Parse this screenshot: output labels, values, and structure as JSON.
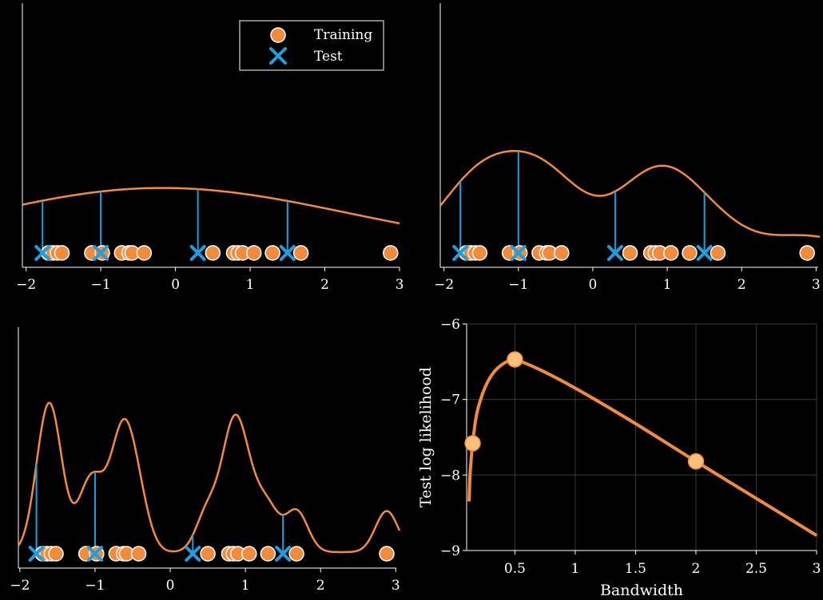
{
  "colors": {
    "background": "#000000",
    "axis": "#ffffff",
    "curve": "#f28c3c",
    "training_fill": "#f28c3c",
    "training_edge": "#ffffff",
    "test": "#1f9fe0",
    "selected_point": "#f8c07a",
    "grid": "#3a3a3a"
  },
  "legend": {
    "training_label": "Training",
    "test_label": "Test",
    "training_marker": "orange-circle-marker",
    "test_marker": "blue-x-marker"
  },
  "chart_data": [
    {
      "type": "line",
      "panel": "top-left",
      "legend_position": "top-right",
      "x_ticks": [
        "−2",
        "−1",
        "0",
        "1",
        "2",
        "3"
      ],
      "xlim": [
        -2,
        3
      ],
      "training_points": [
        -1.7,
        -1.64,
        -1.58,
        -1.52,
        -1.12,
        -0.98,
        -0.72,
        -0.62,
        -0.58,
        -0.42,
        0.5,
        0.78,
        0.84,
        0.9,
        1.05,
        1.3,
        1.68,
        2.88
      ],
      "test_points": [
        -1.78,
        -1.0,
        0.3,
        1.5
      ],
      "bandwidth": 2.0
    },
    {
      "type": "line",
      "panel": "top-right",
      "x_ticks": [
        "−2",
        "−1",
        "0",
        "1",
        "2",
        "3"
      ],
      "xlim": [
        -2,
        3
      ],
      "training_points": [
        -1.7,
        -1.64,
        -1.58,
        -1.52,
        -1.12,
        -0.98,
        -0.72,
        -0.62,
        -0.58,
        -0.42,
        0.5,
        0.78,
        0.84,
        0.9,
        1.05,
        1.3,
        1.68,
        2.88
      ],
      "test_points": [
        -1.78,
        -1.0,
        0.3,
        1.5
      ],
      "bandwidth": 0.5
    },
    {
      "type": "line",
      "panel": "bottom-left",
      "x_ticks": [
        "−2",
        "−1",
        "0",
        "1",
        "2",
        "3"
      ],
      "xlim": [
        -2,
        3
      ],
      "training_points": [
        -1.7,
        -1.64,
        -1.58,
        -1.52,
        -1.12,
        -0.98,
        -0.72,
        -0.62,
        -0.58,
        -0.42,
        0.5,
        0.78,
        0.84,
        0.9,
        1.05,
        1.3,
        1.68,
        2.88
      ],
      "test_points": [
        -1.78,
        -1.0,
        0.3,
        1.5
      ],
      "bandwidth": 0.15
    },
    {
      "type": "line",
      "panel": "bottom-right",
      "xlabel": "Bandwidth",
      "ylabel": "Test log likelihood",
      "xlim": [
        0.1,
        3
      ],
      "ylim": [
        -9,
        -6
      ],
      "x_ticks": [
        "0.5",
        "1",
        "1.5",
        "2",
        "2.5",
        "3"
      ],
      "x_tick_values": [
        0.5,
        1,
        1.5,
        2,
        2.5,
        3
      ],
      "y_ticks": [
        "−6",
        "−7",
        "−8",
        "−9"
      ],
      "y_tick_values": [
        -6,
        -7,
        -8,
        -9
      ],
      "grid": true,
      "x": [
        0.12,
        0.13,
        0.15,
        0.18,
        0.22,
        0.27,
        0.33,
        0.4,
        0.46,
        0.5,
        0.7,
        1.0,
        1.5,
        2.0,
        2.5,
        3.0
      ],
      "y": [
        -8.35,
        -7.95,
        -7.58,
        -7.22,
        -6.98,
        -6.78,
        -6.63,
        -6.53,
        -6.48,
        -6.47,
        -6.6,
        -6.85,
        -7.32,
        -7.82,
        -8.31,
        -8.8
      ],
      "highlight_x": [
        0.15,
        0.5,
        2.0
      ],
      "highlight_y": [
        -7.58,
        -6.47,
        -7.82
      ]
    }
  ]
}
